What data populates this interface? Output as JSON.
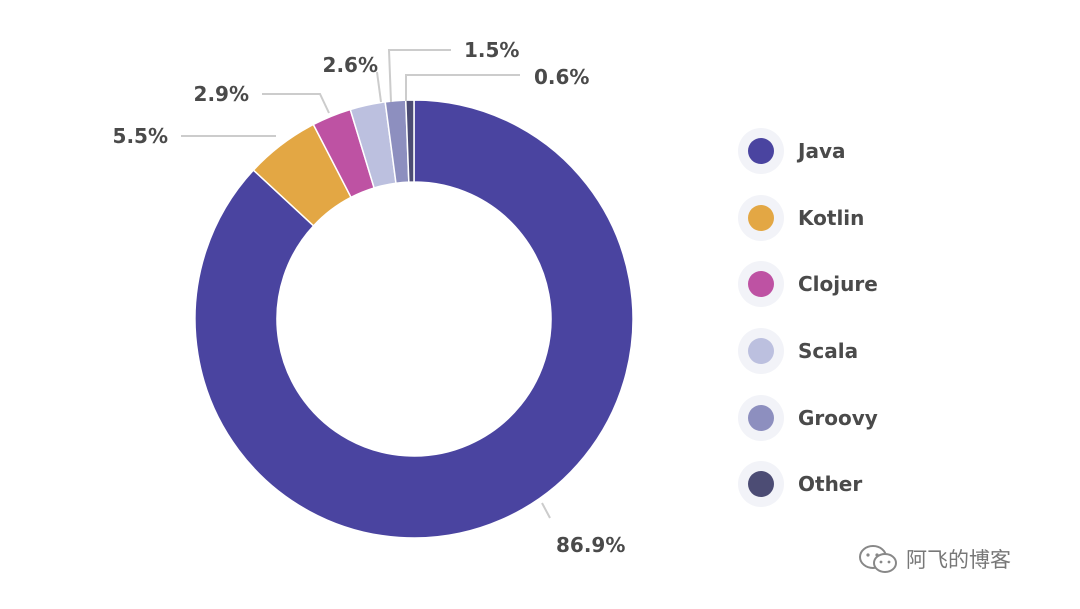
{
  "chart_data": {
    "type": "pie",
    "subtype": "donut",
    "categories": [
      "Java",
      "Kotlin",
      "Clojure",
      "Scala",
      "Groovy",
      "Other"
    ],
    "values": [
      86.9,
      5.5,
      2.9,
      2.6,
      1.5,
      0.6
    ],
    "value_labels": [
      "86.9%",
      "5.5%",
      "2.9%",
      "2.6%",
      "1.5%",
      "0.6%"
    ],
    "colors": [
      "#4a44a0",
      "#e3a744",
      "#be52a3",
      "#bcc0df",
      "#8d8fbf",
      "#4c4c74"
    ],
    "legend_position": "right"
  },
  "legend": {
    "items": [
      {
        "label": "Java",
        "color": "#4a44a0"
      },
      {
        "label": "Kotlin",
        "color": "#e3a744"
      },
      {
        "label": "Clojure",
        "color": "#be52a3"
      },
      {
        "label": "Scala",
        "color": "#bcc0df"
      },
      {
        "label": "Groovy",
        "color": "#8d8fbf"
      },
      {
        "label": "Other",
        "color": "#4c4c74"
      }
    ]
  },
  "watermark": {
    "text": "阿飞的博客",
    "icon": "wechat-icon"
  }
}
